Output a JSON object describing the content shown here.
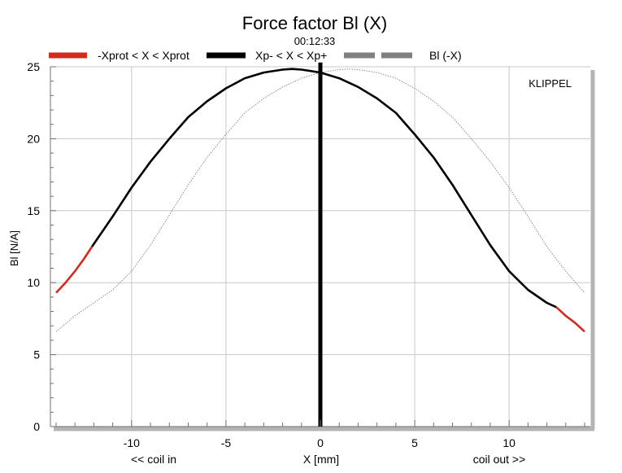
{
  "chart_data": {
    "type": "line",
    "title": "Force factor Bl (X)",
    "subtitle": "00:12:33",
    "xlabel": "X [mm]",
    "ylabel": "Bl [N/A]",
    "xlim": [
      -14.3,
      14.3
    ],
    "ylim": [
      0,
      25
    ],
    "xticks": [
      -10,
      -5,
      0,
      5,
      10
    ],
    "xtick_labels": [
      "-10",
      "-5",
      "0",
      "5",
      "10"
    ],
    "yticks": [
      0,
      5,
      10,
      15,
      20,
      25
    ],
    "ytick_labels": [
      "0",
      "5",
      "10",
      "15",
      "20",
      "25"
    ],
    "x_annotation_left": "<< coil in",
    "x_annotation_right": "coil out >>",
    "watermark": "KLIPPEL",
    "grid": true,
    "legend_position": "top",
    "legend": [
      {
        "label": "-Xprot < X < Xprot",
        "color": "#d42a20",
        "style": "solid"
      },
      {
        "label": "Xp- < X < Xp+",
        "color": "#000000",
        "style": "solid"
      },
      {
        "label": "Bl (-X)",
        "color": "#808080",
        "style": "dashed"
      }
    ],
    "series": [
      {
        "name": "-Xprot < X < Xprot",
        "color": "#d42a20",
        "segments": [
          {
            "x": [
              -14.0,
              -13.5,
              -13.0,
              -12.5,
              -12.1
            ],
            "y": [
              9.3,
              10.0,
              10.8,
              11.7,
              12.5
            ]
          },
          {
            "x": [
              12.5,
              13.0,
              13.5,
              14.0
            ],
            "y": [
              8.3,
              7.7,
              7.2,
              6.6
            ]
          }
        ]
      },
      {
        "name": "Xp- < X < Xp+",
        "color": "#000000",
        "x": [
          -12.1,
          -11,
          -10,
          -9,
          -8,
          -7,
          -6,
          -5,
          -4,
          -3,
          -2,
          -1.5,
          -1,
          0,
          1,
          2,
          3,
          4,
          5,
          6,
          7,
          8,
          9,
          10,
          11,
          12,
          12.5
        ],
        "y": [
          12.5,
          14.6,
          16.6,
          18.4,
          20.0,
          21.5,
          22.6,
          23.5,
          24.2,
          24.6,
          24.8,
          24.85,
          24.8,
          24.6,
          24.2,
          23.6,
          22.8,
          21.8,
          20.3,
          18.7,
          16.8,
          14.7,
          12.6,
          10.8,
          9.5,
          8.6,
          8.3
        ]
      },
      {
        "name": "Bl (-X)",
        "color": "#808080",
        "x": [
          -14,
          -13,
          -12,
          -11,
          -10,
          -9,
          -8,
          -7,
          -6,
          -5,
          -4,
          -3,
          -2,
          -1,
          0,
          1,
          1.5,
          2,
          3,
          4,
          5,
          6,
          7,
          8,
          9,
          10,
          11,
          12,
          13,
          14
        ],
        "y": [
          6.6,
          7.7,
          8.6,
          9.5,
          10.8,
          12.6,
          14.7,
          16.8,
          18.7,
          20.3,
          21.8,
          22.8,
          23.6,
          24.2,
          24.6,
          24.8,
          24.85,
          24.8,
          24.6,
          24.2,
          23.5,
          22.6,
          21.5,
          20.0,
          18.4,
          16.6,
          14.6,
          12.5,
          10.8,
          9.3
        ]
      },
      {
        "name": "rest position",
        "color": "#000000",
        "x": [
          0,
          0
        ],
        "y": [
          0,
          25.3
        ]
      }
    ]
  }
}
